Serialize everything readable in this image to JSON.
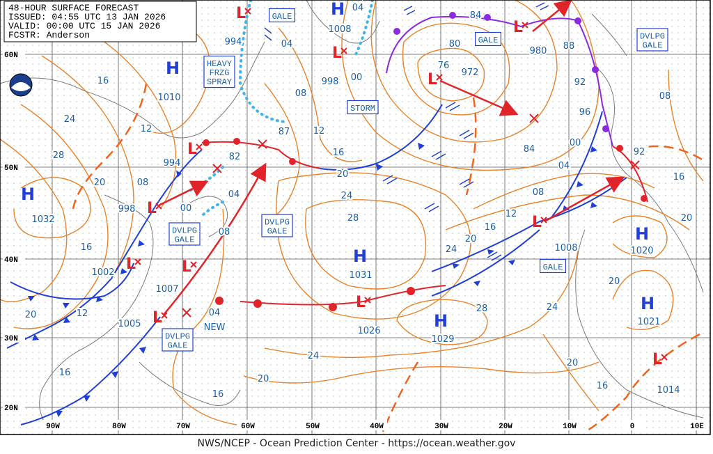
{
  "header": {
    "lines": [
      "48-HOUR SURFACE FORECAST",
      "ISSUED: 04:55 UTC 13 JAN 2026",
      "VALID:  00:00 UTC 15 JAN 2026",
      "FCSTR:  Anderson"
    ]
  },
  "footer": "NWS/NCEP - Ocean Prediction Center - https://ocean.weather.gov",
  "latitude_labels": [
    "60N",
    "50N",
    "40N",
    "30N",
    "20N"
  ],
  "longitude_labels": [
    "90W",
    "80W",
    "70W",
    "60W",
    "50W",
    "40W",
    "30W",
    "20W",
    "10W",
    "0",
    "10E"
  ],
  "highs": [
    {
      "symbol": "H",
      "pressure": "1008"
    },
    {
      "symbol": "H",
      "pressure": "1010"
    },
    {
      "symbol": "H",
      "pressure": "1032"
    },
    {
      "symbol": "H",
      "pressure": "1031"
    },
    {
      "symbol": "H",
      "pressure": "1029"
    },
    {
      "symbol": "H",
      "pressure": "1020"
    },
    {
      "symbol": "H",
      "pressure": "1021"
    }
  ],
  "lows": [
    {
      "symbol": "L",
      "pressure": "994"
    },
    {
      "symbol": "L",
      "pressure": "998"
    },
    {
      "symbol": "L",
      "pressure": "980"
    },
    {
      "symbol": "L",
      "pressure": "972"
    },
    {
      "symbol": "L",
      "pressure": "994"
    },
    {
      "symbol": "L",
      "pressure": "998"
    },
    {
      "symbol": "L",
      "pressure": "1002"
    },
    {
      "symbol": "L",
      "pressure": "1007"
    },
    {
      "symbol": "L",
      "pressure": "1005"
    },
    {
      "symbol": "L",
      "pressure": "1026"
    },
    {
      "symbol": "L",
      "pressure": "1008"
    },
    {
      "symbol": "L",
      "pressure": "1014"
    }
  ],
  "x_marks": [
    {
      "pressure": "82"
    },
    {
      "pressure": "87"
    },
    {
      "pressure": "84"
    },
    {
      "pressure": "92"
    },
    {
      "pressure": "04",
      "note": "NEW"
    }
  ],
  "warnings": [
    {
      "lines": [
        "GALE"
      ]
    },
    {
      "lines": [
        "GALE"
      ]
    },
    {
      "lines": [
        "DVLPG",
        "GALE"
      ]
    },
    {
      "lines": [
        "HEAVY",
        "FRZG",
        "SPRAY"
      ]
    },
    {
      "lines": [
        "STORM"
      ]
    },
    {
      "lines": [
        "DVLPG",
        "GALE"
      ]
    },
    {
      "lines": [
        "DVLPG",
        "GALE"
      ]
    },
    {
      "lines": [
        "GALE"
      ]
    },
    {
      "lines": [
        "DVLPG",
        "GALE"
      ]
    }
  ],
  "isobar_labels": [
    "04",
    "16",
    "12",
    "24",
    "28",
    "20",
    "08",
    "00",
    "08",
    "04",
    "16",
    "20",
    "12",
    "16",
    "16",
    "20",
    "24",
    "08",
    "12",
    "16",
    "20",
    "24",
    "28",
    "00",
    "04",
    "80",
    "76",
    "84",
    "88",
    "92",
    "96",
    "00",
    "04",
    "08",
    "12",
    "16",
    "20",
    "24",
    "28",
    "24",
    "20",
    "16",
    "20",
    "08",
    "16",
    "20"
  ]
}
